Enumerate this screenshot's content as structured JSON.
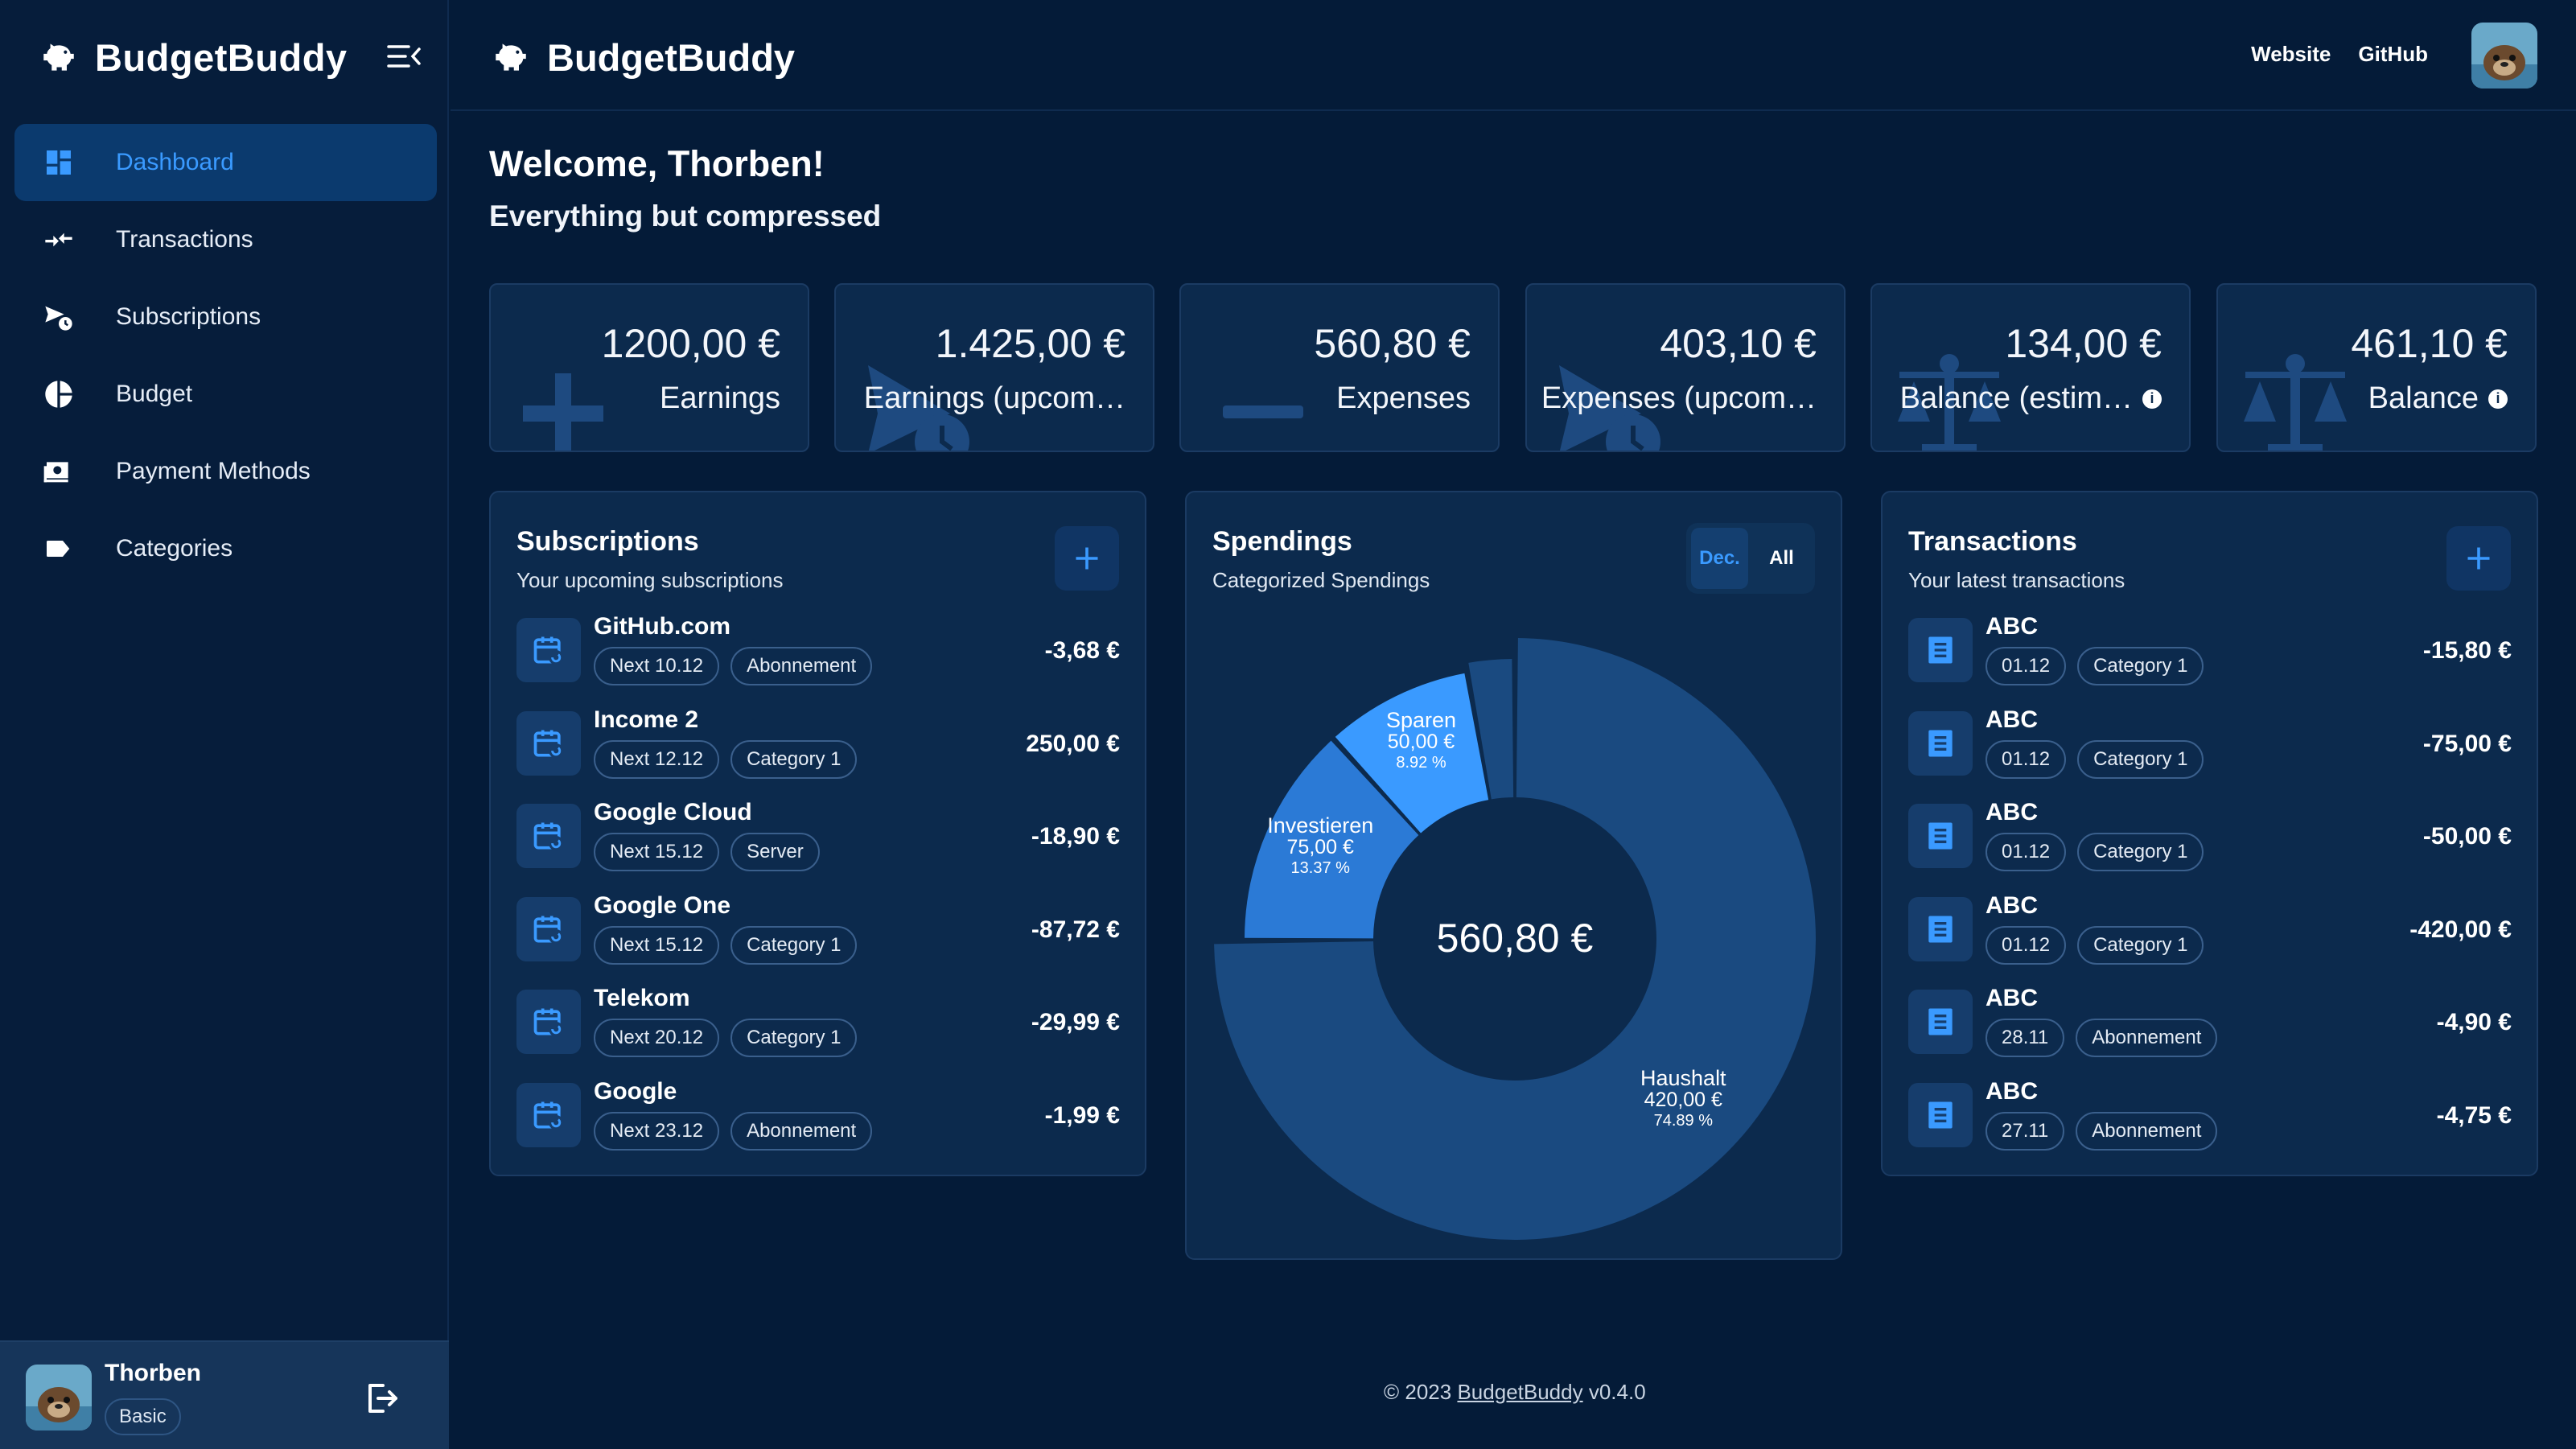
{
  "app": {
    "name": "BudgetBuddy"
  },
  "colors": {
    "background": "#041b38",
    "card": "#0c2a4d",
    "accent": "#3a9aff",
    "chart_primary": "#1a4a80",
    "chart_light": "#3a9aff",
    "chart_mid": "#2b7ad6"
  },
  "sidebar": {
    "items": [
      {
        "label": "Dashboard",
        "icon": "dashboard-icon"
      },
      {
        "label": "Transactions",
        "icon": "transfer-arrows-icon"
      },
      {
        "label": "Subscriptions",
        "icon": "subscription-clock-icon"
      },
      {
        "label": "Budget",
        "icon": "pie-icon"
      },
      {
        "label": "Payment Methods",
        "icon": "wallet-icon"
      },
      {
        "label": "Categories",
        "icon": "label-icon"
      }
    ],
    "user": {
      "name": "Thorben",
      "plan": "Basic"
    }
  },
  "topbar": {
    "links": [
      "Website",
      "GitHub"
    ]
  },
  "welcome": {
    "title": "Welcome, Thorben!",
    "subtitle": "Everything but compressed"
  },
  "stats": [
    {
      "value": "1200,00 €",
      "label": "Earnings",
      "icon": "plus-icon",
      "info": false
    },
    {
      "value": "1.425,00 €",
      "label": "Earnings (upcom…",
      "icon": "send-clock-icon",
      "info": false
    },
    {
      "value": "560,80 €",
      "label": "Expenses",
      "icon": "minus-icon",
      "info": false
    },
    {
      "value": "403,10 €",
      "label": "Expenses (upcom…",
      "icon": "send-clock-icon",
      "info": false
    },
    {
      "value": "134,00 €",
      "label": "Balance (estim…",
      "icon": "scale-icon",
      "info": true
    },
    {
      "value": "461,10 €",
      "label": "Balance",
      "icon": "scale-icon",
      "info": true
    }
  ],
  "subscriptions": {
    "title": "Subscriptions",
    "subtitle": "Your upcoming subscriptions",
    "items": [
      {
        "name": "GitHub.com",
        "next": "Next 10.12",
        "category": "Abonnement",
        "amount": "-3,68 €"
      },
      {
        "name": "Income 2",
        "next": "Next 12.12",
        "category": "Category 1",
        "amount": "250,00 €"
      },
      {
        "name": "Google Cloud",
        "next": "Next 15.12",
        "category": "Server",
        "amount": "-18,90 €"
      },
      {
        "name": "Google One",
        "next": "Next 15.12",
        "category": "Category 1",
        "amount": "-87,72 €"
      },
      {
        "name": "Telekom",
        "next": "Next 20.12",
        "category": "Category 1",
        "amount": "-29,99 €"
      },
      {
        "name": "Google",
        "next": "Next 23.12",
        "category": "Abonnement",
        "amount": "-1,99 €"
      }
    ]
  },
  "spendings": {
    "title": "Spendings",
    "subtitle": "Categorized Spendings",
    "toggle": [
      "Dec.",
      "All"
    ],
    "total": "560,80 €"
  },
  "chart_data": {
    "type": "pie",
    "total": 560.8,
    "slices": [
      {
        "label": "Haushalt",
        "value": 420.0,
        "value_text": "420,00 €",
        "percent_text": "74.89 %"
      },
      {
        "label": "Investieren",
        "value": 75.0,
        "value_text": "75,00 €",
        "percent_text": "13.37 %"
      },
      {
        "label": "Sparen",
        "value": 50.0,
        "value_text": "50,00 €",
        "percent_text": "8.92 %"
      },
      {
        "label": "",
        "value": 15.8,
        "value_text": "",
        "percent_text": ""
      }
    ]
  },
  "transactions": {
    "title": "Transactions",
    "subtitle": "Your latest transactions",
    "items": [
      {
        "name": "ABC",
        "date": "01.12",
        "category": "Category 1",
        "amount": "-15,80 €"
      },
      {
        "name": "ABC",
        "date": "01.12",
        "category": "Category 1",
        "amount": "-75,00 €"
      },
      {
        "name": "ABC",
        "date": "01.12",
        "category": "Category 1",
        "amount": "-50,00 €"
      },
      {
        "name": "ABC",
        "date": "01.12",
        "category": "Category 1",
        "amount": "-420,00 €"
      },
      {
        "name": "ABC",
        "date": "28.11",
        "category": "Abonnement",
        "amount": "-4,90 €"
      },
      {
        "name": "ABC",
        "date": "27.11",
        "category": "Abonnement",
        "amount": "-4,75 €"
      }
    ]
  },
  "footer": {
    "prefix": "© 2023",
    "link": "BudgetBuddy",
    "version": "v0.4.0"
  }
}
